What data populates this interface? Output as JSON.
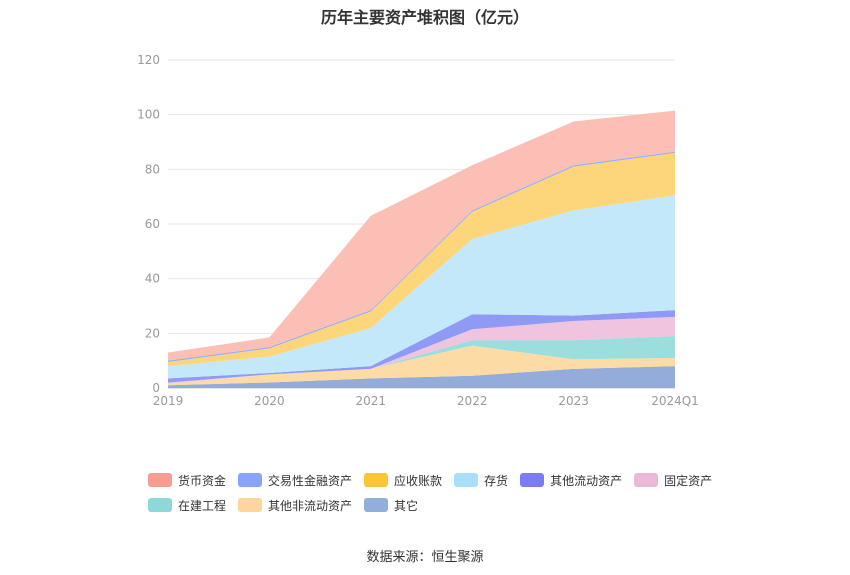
{
  "chart_data": {
    "type": "area",
    "stacked": true,
    "title": "历年主要资产堆积图（亿元）",
    "categories": [
      "2019",
      "2020",
      "2021",
      "2022",
      "2023",
      "2024Q1"
    ],
    "ylim": [
      0,
      120
    ],
    "yticks": [
      0,
      20,
      40,
      60,
      80,
      100,
      120
    ],
    "grid": true,
    "legend_position": "bottom",
    "series": [
      {
        "name": "其它",
        "color": "#93acd9",
        "values": [
          1.0,
          2.0,
          3.5,
          4.5,
          7.0,
          8.0
        ]
      },
      {
        "name": "其他非流动资产",
        "color": "#fddba4",
        "values": [
          0.5,
          3.0,
          3.5,
          11.0,
          3.5,
          3.0
        ]
      },
      {
        "name": "在建工程",
        "color": "#9cdddd",
        "values": [
          0.0,
          0.0,
          0.0,
          2.0,
          7.0,
          8.0
        ]
      },
      {
        "name": "固定资产",
        "color": "#f0c4de",
        "values": [
          0.5,
          0.0,
          0.0,
          4.0,
          7.0,
          7.0
        ]
      },
      {
        "name": "其他流动资产",
        "color": "#8f9af5",
        "values": [
          1.5,
          0.5,
          1.0,
          5.5,
          2.0,
          2.5
        ]
      },
      {
        "name": "存货",
        "color": "#c3e8f9",
        "values": [
          4.5,
          6.0,
          14.0,
          27.5,
          38.5,
          42.0
        ]
      },
      {
        "name": "应收账款",
        "color": "#fdd67c",
        "values": [
          1.5,
          3.0,
          6.0,
          10.0,
          16.0,
          15.5
        ]
      },
      {
        "name": "交易性金融资产",
        "color": "#97aef8",
        "values": [
          0.5,
          0.5,
          0.5,
          0.5,
          0.5,
          0.5
        ]
      },
      {
        "name": "货币资金",
        "color": "#fbbfb6",
        "values": [
          3.0,
          3.5,
          34.5,
          16.5,
          16.0,
          15.0
        ]
      }
    ],
    "legend": [
      {
        "name": "货币资金",
        "color": "#f79d91"
      },
      {
        "name": "交易性金融资产",
        "color": "#88a4fb"
      },
      {
        "name": "应收账款",
        "color": "#fbc536"
      },
      {
        "name": "存货",
        "color": "#a8dffb"
      },
      {
        "name": "其他流动资产",
        "color": "#7b7cf2"
      },
      {
        "name": "固定资产",
        "color": "#ebb8d8"
      },
      {
        "name": "在建工程",
        "color": "#8ed8d8"
      },
      {
        "name": "其他非流动资产",
        "color": "#fcd69a"
      },
      {
        "name": "其它",
        "color": "#92aedb"
      }
    ]
  },
  "source_note": "数据来源：恒生聚源"
}
